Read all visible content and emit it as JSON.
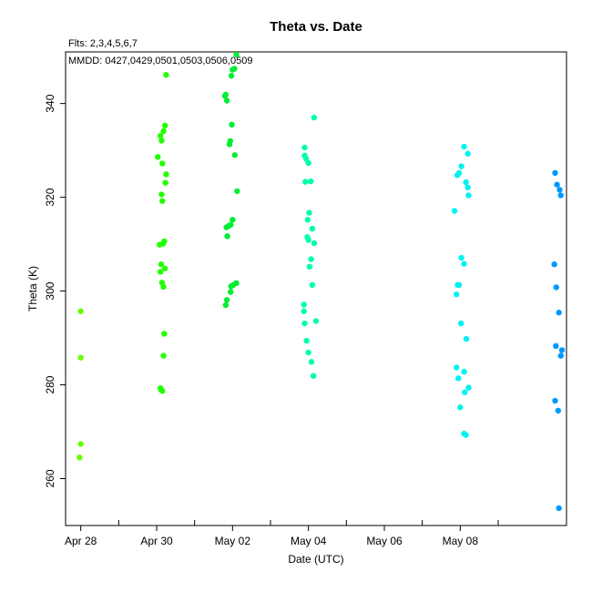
{
  "chart_data": {
    "type": "scatter",
    "title": "Theta  vs. Date",
    "annotations": [
      "Flts: 2,3,4,5,6,7",
      "MMDD: 0427,0429,0501,0503,0506,0509"
    ],
    "xlabel": "Date (UTC)",
    "ylabel": "Theta (K)",
    "x_unit": "day of May 2019 (Apr 28 = -3)",
    "xlim": [
      -3.4,
      9.8
    ],
    "ylim": [
      250,
      351
    ],
    "x_ticks": [
      {
        "label": "Apr 28",
        "x": -3
      },
      {
        "label": "Apr 30",
        "x": -1
      },
      {
        "label": "May 02",
        "x": 1
      },
      {
        "label": "May 04",
        "x": 3
      },
      {
        "label": "May 06",
        "x": 5
      },
      {
        "label": "May 08",
        "x": 7
      }
    ],
    "x_minor_ticks": [
      -2,
      0,
      2,
      4,
      6,
      8
    ],
    "y_ticks": [
      260,
      280,
      300,
      320,
      340
    ],
    "grid": false,
    "series": [
      {
        "name": "2",
        "color": "#66ff00",
        "points": [
          [
            -3.0,
            295.7
          ],
          [
            -3.0,
            285.8
          ],
          [
            -3.0,
            267.4
          ],
          [
            -3.03,
            264.5
          ]
        ]
      },
      {
        "name": "3",
        "color": "#22ff00",
        "points": [
          [
            -0.75,
            346.1
          ],
          [
            -0.78,
            335.3
          ],
          [
            -0.82,
            334.1
          ],
          [
            -0.9,
            333.1
          ],
          [
            -0.87,
            332.1
          ],
          [
            -0.97,
            328.6
          ],
          [
            -0.85,
            327.2
          ],
          [
            -0.75,
            324.9
          ],
          [
            -0.77,
            323.1
          ],
          [
            -0.87,
            320.6
          ],
          [
            -0.85,
            319.2
          ],
          [
            -0.8,
            310.6
          ],
          [
            -0.83,
            310.1
          ],
          [
            -0.92,
            309.9
          ],
          [
            -0.88,
            305.7
          ],
          [
            -0.78,
            304.8
          ],
          [
            -0.9,
            304.1
          ],
          [
            -0.86,
            301.8
          ],
          [
            -0.82,
            300.9
          ],
          [
            -0.8,
            290.9
          ],
          [
            -0.82,
            286.2
          ],
          [
            -0.9,
            279.3
          ],
          [
            -0.88,
            278.9
          ],
          [
            -0.85,
            278.7
          ]
        ]
      },
      {
        "name": "4",
        "color": "#00ee33",
        "points": [
          [
            1.1,
            350.4
          ],
          [
            1.05,
            347.4
          ],
          [
            1.0,
            347.2
          ],
          [
            0.97,
            345.9
          ],
          [
            0.8,
            341.6
          ],
          [
            0.82,
            341.9
          ],
          [
            0.85,
            340.6
          ],
          [
            0.98,
            335.5
          ],
          [
            0.94,
            332.0
          ],
          [
            0.92,
            331.3
          ],
          [
            1.06,
            329.0
          ],
          [
            1.12,
            321.3
          ],
          [
            1.0,
            315.2
          ],
          [
            0.95,
            314.1
          ],
          [
            0.84,
            313.6
          ],
          [
            0.9,
            313.9
          ],
          [
            0.86,
            311.7
          ],
          [
            1.1,
            301.7
          ],
          [
            1.02,
            301.3
          ],
          [
            0.96,
            301.0
          ],
          [
            0.95,
            299.8
          ],
          [
            0.85,
            298.1
          ],
          [
            0.82,
            297.0
          ]
        ]
      },
      {
        "name": "5",
        "color": "#00ffaa",
        "points": [
          [
            3.15,
            337.0
          ],
          [
            2.9,
            330.6
          ],
          [
            2.9,
            328.9
          ],
          [
            2.94,
            328.2
          ],
          [
            3.0,
            327.3
          ],
          [
            3.06,
            323.4
          ],
          [
            2.92,
            323.3
          ],
          [
            3.02,
            316.7
          ],
          [
            2.98,
            315.2
          ],
          [
            3.1,
            313.3
          ],
          [
            2.97,
            311.5
          ],
          [
            3.0,
            310.9
          ],
          [
            3.15,
            310.2
          ],
          [
            3.07,
            306.8
          ],
          [
            3.03,
            305.2
          ],
          [
            3.1,
            301.3
          ],
          [
            2.88,
            297.1
          ],
          [
            2.88,
            295.7
          ],
          [
            3.2,
            293.6
          ],
          [
            2.9,
            293.1
          ],
          [
            2.95,
            289.4
          ],
          [
            3.0,
            286.9
          ],
          [
            3.08,
            284.9
          ],
          [
            3.13,
            281.9
          ]
        ]
      },
      {
        "name": "6",
        "color": "#00f2f2",
        "points": [
          [
            7.1,
            330.8
          ],
          [
            7.2,
            329.3
          ],
          [
            7.03,
            326.6
          ],
          [
            6.97,
            325.2
          ],
          [
            6.92,
            324.7
          ],
          [
            7.15,
            323.2
          ],
          [
            7.2,
            322.1
          ],
          [
            7.22,
            320.4
          ],
          [
            6.85,
            317.1
          ],
          [
            7.03,
            307.1
          ],
          [
            7.1,
            305.8
          ],
          [
            6.93,
            301.3
          ],
          [
            6.97,
            301.3
          ],
          [
            6.9,
            299.3
          ],
          [
            7.02,
            293.1
          ],
          [
            7.16,
            289.8
          ],
          [
            6.9,
            283.7
          ],
          [
            7.1,
            282.8
          ],
          [
            6.95,
            281.4
          ],
          [
            7.22,
            279.4
          ],
          [
            7.12,
            278.4
          ],
          [
            7.0,
            275.2
          ],
          [
            7.1,
            269.6
          ],
          [
            7.15,
            269.3
          ]
        ]
      },
      {
        "name": "7",
        "color": "#0099ff",
        "points": [
          [
            9.5,
            325.2
          ],
          [
            9.55,
            322.7
          ],
          [
            9.62,
            321.6
          ],
          [
            9.65,
            320.4
          ],
          [
            9.48,
            305.7
          ],
          [
            9.53,
            300.8
          ],
          [
            9.6,
            295.4
          ],
          [
            9.68,
            287.4
          ],
          [
            9.52,
            288.3
          ],
          [
            9.65,
            286.2
          ],
          [
            9.5,
            276.6
          ],
          [
            9.58,
            274.5
          ],
          [
            9.6,
            253.7
          ]
        ]
      }
    ]
  }
}
